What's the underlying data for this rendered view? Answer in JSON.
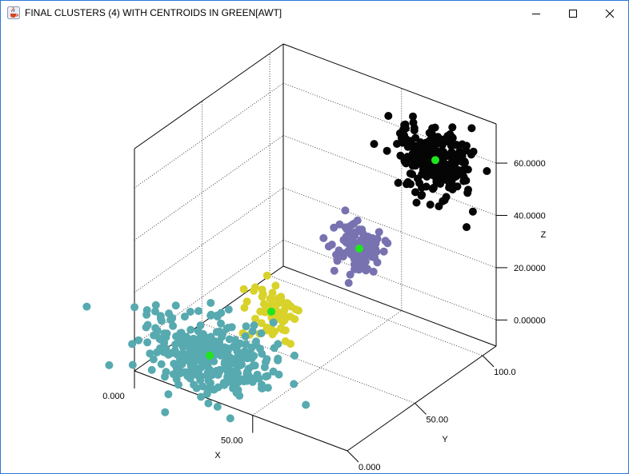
{
  "window": {
    "title": "FINAL CLUSTERS (4) WITH CENTROIDS IN GREEN[AWT]",
    "app_icon": "java-coffee-cup-icon",
    "controls": [
      "minimize-icon",
      "maximize-icon",
      "close-icon"
    ]
  },
  "chart_data": {
    "type": "scatter",
    "dimensions": 3,
    "title": "FINAL CLUSTERS (4) WITH CENTROIDS IN GREEN",
    "xlabel": "X",
    "ylabel": "Y",
    "zlabel": "Z",
    "x_ticks": [
      "0.000",
      "50.00"
    ],
    "y_ticks": [
      "0.000",
      "50.00",
      "100.0"
    ],
    "z_ticks": [
      "0.00000",
      "20.0000",
      "40.0000",
      "60.0000"
    ],
    "xlim": [
      0,
      90
    ],
    "ylim": [
      0,
      110
    ],
    "zlim": [
      -10,
      75
    ],
    "grid": true,
    "clusters": [
      {
        "color": "#57aaaf",
        "points": 330,
        "centroid": [
          25,
          12,
          0
        ],
        "spread": [
          13,
          9,
          6
        ]
      },
      {
        "color": "#d8d22a",
        "points": 70,
        "centroid": [
          35,
          40,
          10
        ],
        "spread": [
          5,
          4,
          4
        ]
      },
      {
        "color": "#7872b0",
        "points": 110,
        "centroid": [
          55,
          70,
          30
        ],
        "spread": [
          5,
          4,
          5
        ]
      },
      {
        "color": "#050505",
        "points": 260,
        "centroid": [
          70,
          100,
          58
        ],
        "spread": [
          7,
          5,
          6
        ]
      }
    ],
    "centroid_color": "#1fe51f"
  }
}
